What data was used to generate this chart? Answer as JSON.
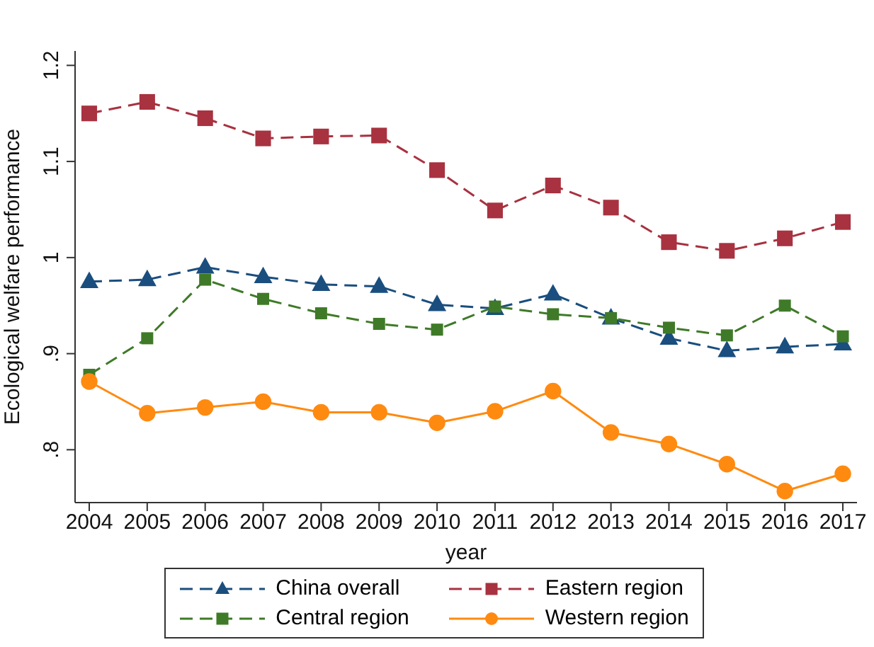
{
  "chart_data": {
    "type": "line",
    "xlabel": "year",
    "ylabel": "Ecological welfare performance",
    "categories": [
      "2004",
      "2005",
      "2006",
      "2007",
      "2008",
      "2009",
      "2010",
      "2011",
      "2012",
      "2013",
      "2014",
      "2015",
      "2016",
      "2017"
    ],
    "ylim": [
      0.745,
      1.215
    ],
    "yticks": [
      {
        "value": 0.8,
        "label": ".8"
      },
      {
        "value": 0.9,
        "label": ".9"
      },
      {
        "value": 1,
        "label": "1"
      },
      {
        "value": 1.1,
        "label": "1.1"
      },
      {
        "value": 1.2,
        "label": "1.2"
      }
    ],
    "grid": false,
    "legend": "bottom",
    "series": [
      {
        "name": "China overall",
        "color": "#1a4e7e",
        "marker": "triangle",
        "line_style": "dashed",
        "values": [
          0.975,
          0.977,
          0.99,
          0.98,
          0.972,
          0.97,
          0.951,
          0.947,
          0.962,
          0.937,
          0.916,
          0.903,
          0.907,
          0.91
        ]
      },
      {
        "name": "Eastern region",
        "color": "#a83240",
        "marker": "square",
        "line_style": "dashed",
        "values": [
          1.15,
          1.162,
          1.145,
          1.124,
          1.126,
          1.127,
          1.091,
          1.049,
          1.075,
          1.052,
          1.016,
          1.007,
          1.02,
          1.037
        ]
      },
      {
        "name": "Central region",
        "color": "#3f7a28",
        "marker": "square",
        "line_style": "dashed",
        "values": [
          0.878,
          0.916,
          0.977,
          0.957,
          0.942,
          0.931,
          0.925,
          0.949,
          0.941,
          0.937,
          0.927,
          0.919,
          0.95,
          0.918
        ]
      },
      {
        "name": "Western region",
        "color": "#ff8a10",
        "marker": "circle",
        "line_style": "solid",
        "values": [
          0.871,
          0.838,
          0.844,
          0.85,
          0.839,
          0.839,
          0.828,
          0.84,
          0.861,
          0.818,
          0.806,
          0.785,
          0.757,
          0.775
        ]
      }
    ]
  }
}
